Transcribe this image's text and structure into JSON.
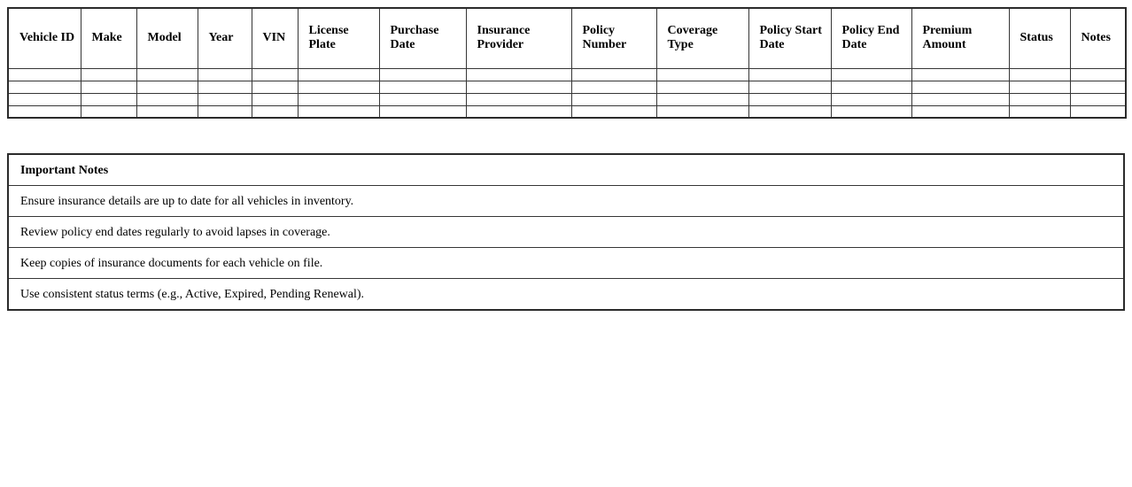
{
  "colors": {
    "background": "#ffffff",
    "border_outer": "#2b2b2b",
    "border_inner": "#363636",
    "text": "#000000"
  },
  "main_table": {
    "headers": [
      "Vehicle ID",
      "Make",
      "Model",
      "Year",
      "VIN",
      "License Plate",
      "Purchase Date",
      "Insurance Provider",
      "Policy Number",
      "Coverage Type",
      "Policy Start Date",
      "Policy End Date",
      "Premium Amount",
      "Status",
      "Notes"
    ],
    "empty_rows": [
      [
        "",
        "",
        "",
        "",
        "",
        "",
        "",
        "",
        "",
        "",
        "",
        "",
        "",
        "",
        ""
      ],
      [
        "",
        "",
        "",
        "",
        "",
        "",
        "",
        "",
        "",
        "",
        "",
        "",
        "",
        "",
        ""
      ],
      [
        "",
        "",
        "",
        "",
        "",
        "",
        "",
        "",
        "",
        "",
        "",
        "",
        "",
        "",
        ""
      ],
      [
        "",
        "",
        "",
        "",
        "",
        "",
        "",
        "",
        "",
        "",
        "",
        "",
        "",
        "",
        ""
      ]
    ]
  },
  "notes": {
    "title": "Important Notes",
    "items": [
      "Ensure insurance details are up to date for all vehicles in inventory.",
      "Review policy end dates regularly to avoid lapses in coverage.",
      "Keep copies of insurance documents for each vehicle on file.",
      "Use consistent status terms (e.g., Active, Expired, Pending Renewal)."
    ]
  }
}
